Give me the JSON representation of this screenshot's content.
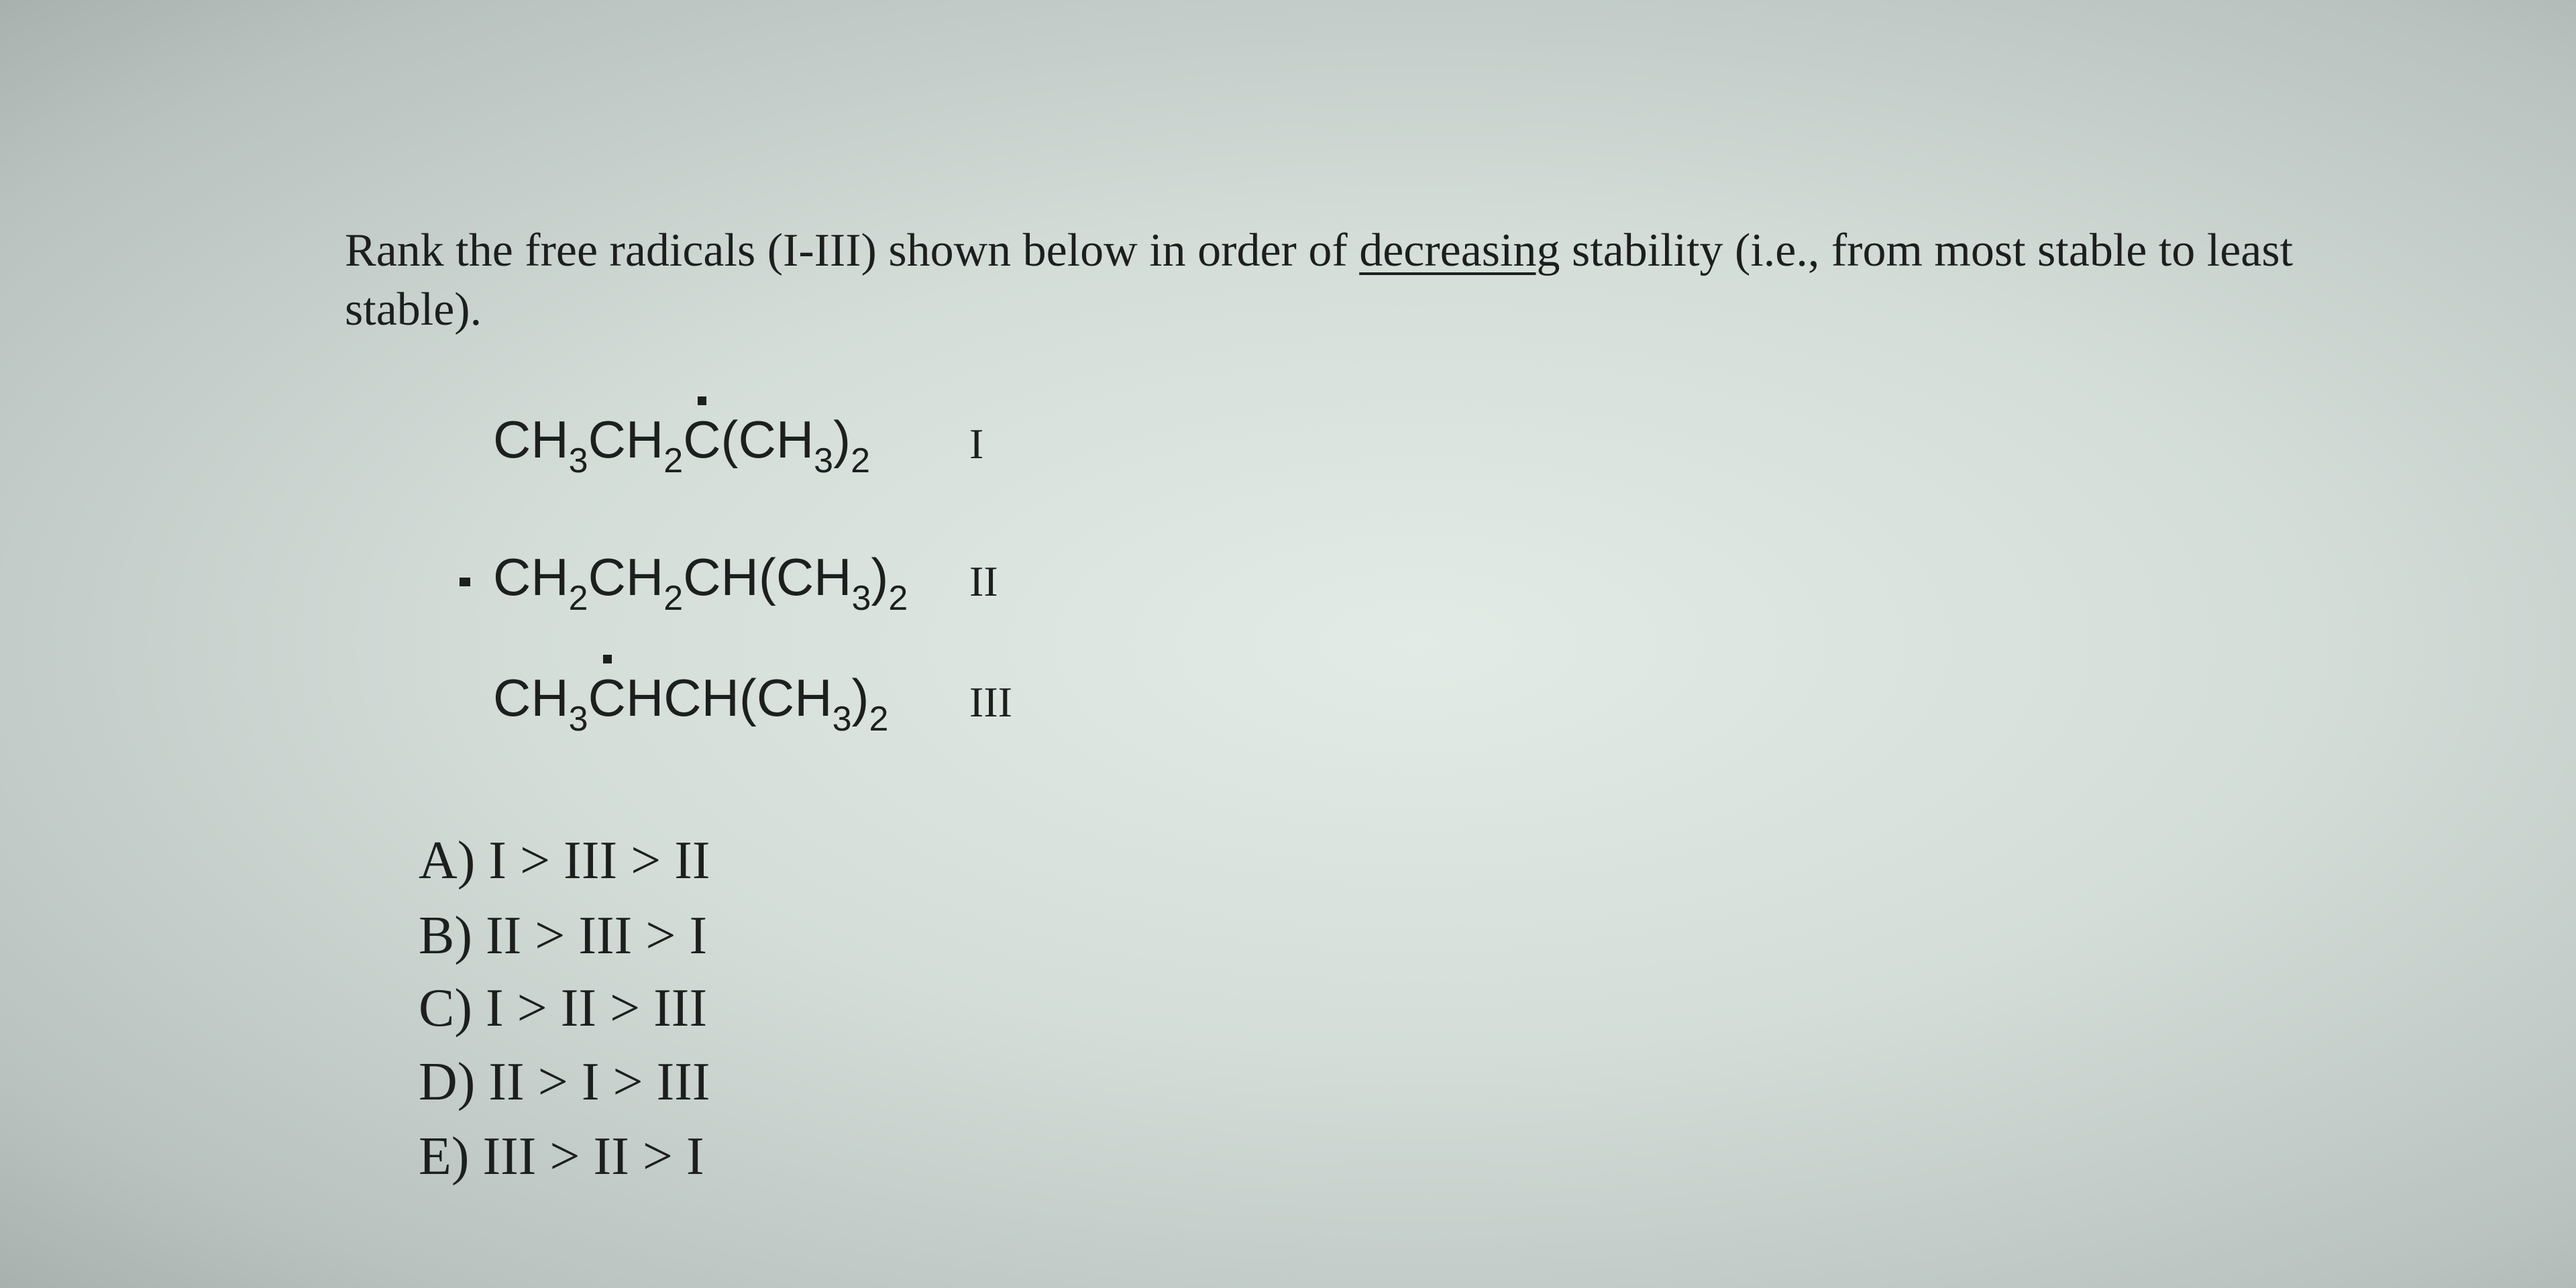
{
  "question": {
    "before": "Rank the free radicals (I-III) shown below in order of ",
    "underlined": "decreasing",
    "after": " stability (i.e., from most stable to least stable)."
  },
  "radicals": [
    {
      "formula": [
        "CH",
        "3",
        "CH",
        "2",
        "C",
        "(CH",
        "3",
        ")",
        "2"
      ],
      "label": "I"
    },
    {
      "formula": [
        "CH",
        "2",
        "CH",
        "2",
        "CH(CH",
        "3",
        ")",
        "2"
      ],
      "label": "II"
    },
    {
      "formula": [
        "CH",
        "3",
        "C",
        "HCH(CH",
        "3",
        ")",
        "2"
      ],
      "label": "III"
    }
  ],
  "options": [
    "A) I > III > II",
    "B) II > III > I",
    "C) I > II > III",
    "D) II > I > III",
    "E) III > II > I"
  ]
}
